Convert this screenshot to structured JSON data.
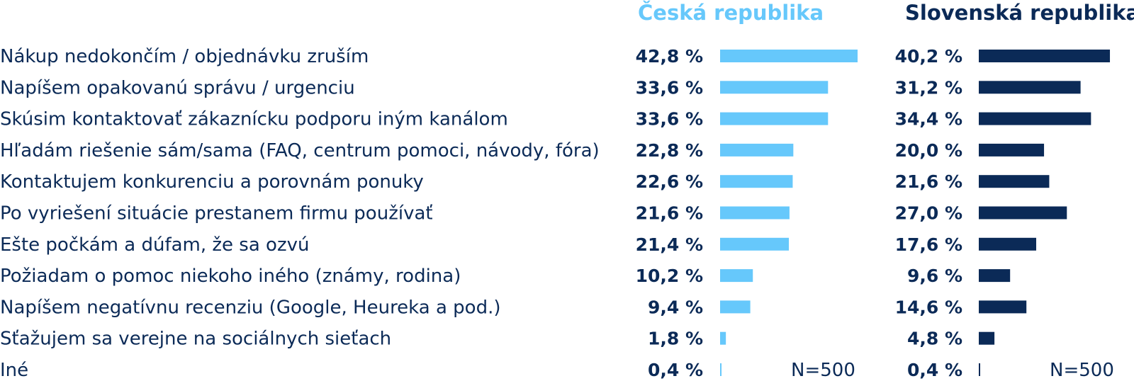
{
  "chart_data": {
    "type": "bar",
    "orientation": "horizontal",
    "categories": [
      "Nákup nedokončím / objednávku zruším",
      "Napíšem opakovanú správu / urgenciu",
      "Skúsim kontaktovať zákaznícku podporu iným kanálom",
      "Hľadám riešenie sám/sama (FAQ, centrum pomoci, návody, fóra)",
      "Kontaktujem konkurenciu a porovnám ponuky",
      "Po vyriešení situácie prestanem firmu používať",
      "Ešte počkám a dúfam, že sa ozvú",
      "Požiadam o pomoc niekoho iného (známy, rodina)",
      "Napíšem negatívnu recenziu (Google, Heureka a pod.)",
      "Sťažujem sa verejne na sociálnych sieťach",
      "Iné"
    ],
    "series": [
      {
        "name": "Česká republika",
        "color": "#66c8fb",
        "values": [
          42.8,
          33.6,
          33.6,
          22.8,
          22.6,
          21.6,
          21.4,
          10.2,
          9.4,
          1.8,
          0.4
        ],
        "labels": [
          "42,8 %",
          "33,6 %",
          "33,6 %",
          "22,8 %",
          "22,6 %",
          "21,6 %",
          "21,4 %",
          "10,2 %",
          "9,4 %",
          "1,8 %",
          "0,4 %"
        ],
        "n_label": "N=500"
      },
      {
        "name": "Slovenská republika",
        "color": "#0b2a57",
        "values": [
          40.2,
          31.2,
          34.4,
          20.0,
          21.6,
          27.0,
          17.6,
          9.6,
          14.6,
          4.8,
          0.4
        ],
        "labels": [
          "40,2 %",
          "31,2 %",
          "34,4 %",
          "20,0 %",
          "21,6 %",
          "27,0 %",
          "17,6 %",
          "9,6 %",
          "14,6 %",
          "4,8 %",
          "0,4 %"
        ],
        "n_label": "N=500"
      }
    ],
    "xlim": [
      0,
      42.8
    ],
    "grid": false,
    "legend": "top"
  }
}
